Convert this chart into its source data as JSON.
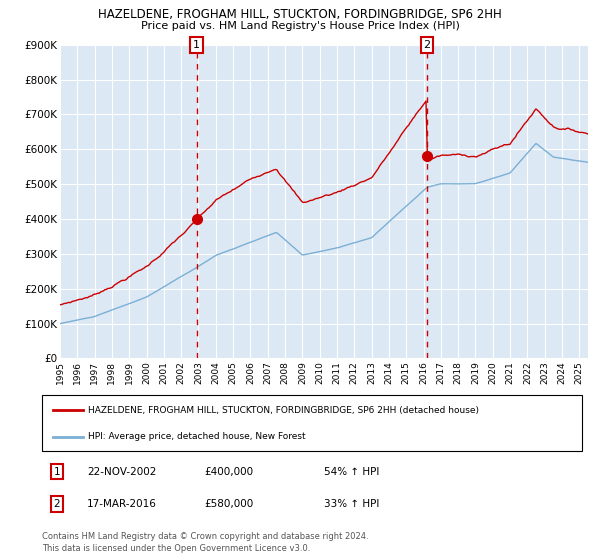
{
  "title1": "HAZELDENE, FROGHAM HILL, STUCKTON, FORDINGBRIDGE, SP6 2HH",
  "title2": "Price paid vs. HM Land Registry's House Price Index (HPI)",
  "legend_red": "HAZELDENE, FROGHAM HILL, STUCKTON, FORDINGBRIDGE, SP6 2HH (detached house)",
  "legend_blue": "HPI: Average price, detached house, New Forest",
  "sale1_date": "22-NOV-2002",
  "sale1_price": "£400,000",
  "sale1_pct": "54% ↑ HPI",
  "sale2_date": "17-MAR-2016",
  "sale2_price": "£580,000",
  "sale2_pct": "33% ↑ HPI",
  "footnote1": "Contains HM Land Registry data © Crown copyright and database right 2024.",
  "footnote2": "This data is licensed under the Open Government Licence v3.0.",
  "plot_bg_color": "#dce9f5",
  "red_line_color": "#cc0000",
  "blue_line_color": "#7bafd4",
  "grid_color": "#ffffff",
  "vline_color": "#cc0000",
  "marker_color": "#cc0000",
  "ylim_min": 0,
  "ylim_max": 900000,
  "sale1_x": 2002.9,
  "sale2_x": 2016.2,
  "sale1_price_val": 400000,
  "sale2_price_val": 580000
}
